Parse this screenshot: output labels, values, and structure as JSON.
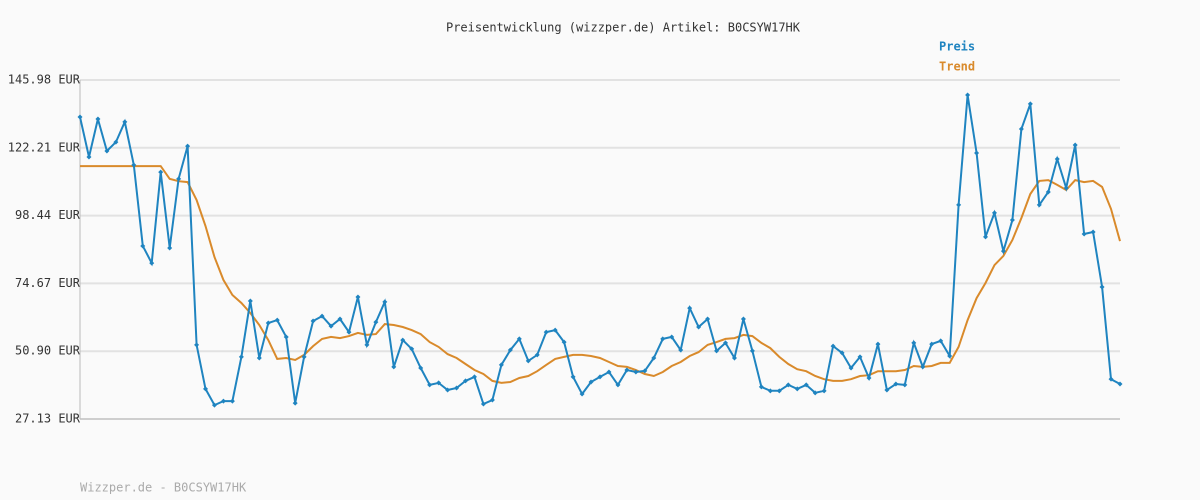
{
  "chart_data": {
    "type": "line",
    "title": "Preisentwicklung (wizzper.de) Artikel: B0CSYW17HK",
    "footer": "Wizzper.de - B0CSYW17HK",
    "ylim": [
      27.13,
      145.98
    ],
    "yticks": [
      {
        "value": 27.13,
        "label": "27.13 EUR"
      },
      {
        "value": 50.9,
        "label": "50.90 EUR"
      },
      {
        "value": 74.67,
        "label": "74.67 EUR"
      },
      {
        "value": 98.44,
        "label": "98.44 EUR"
      },
      {
        "value": 122.21,
        "label": "122.21 EUR"
      },
      {
        "value": 145.98,
        "label": "145.98 EUR"
      }
    ],
    "grid": true,
    "legend": "top-right",
    "series": [
      {
        "name": "Preis",
        "color": "#1f84c0",
        "markers": true,
        "values": [
          133.0,
          119.0,
          132.3,
          121.1,
          124.2,
          131.3,
          116.2,
          87.8,
          81.8,
          113.7,
          87.1,
          111.3,
          122.8,
          53.1,
          37.7,
          32.0,
          33.4,
          33.4,
          48.9,
          68.5,
          48.5,
          60.8,
          61.8,
          55.9,
          32.7,
          48.9,
          61.5,
          63.2,
          59.7,
          62.2,
          57.6,
          69.9,
          53.1,
          61.1,
          68.2,
          45.4,
          54.8,
          51.7,
          45.0,
          39.1,
          39.8,
          37.3,
          38.0,
          40.5,
          41.9,
          32.4,
          33.8,
          46.1,
          51.3,
          55.2,
          47.5,
          49.6,
          57.6,
          58.3,
          54.1,
          41.9,
          35.9,
          40.1,
          41.9,
          43.6,
          39.1,
          44.3,
          43.6,
          44.0,
          48.5,
          55.2,
          55.9,
          51.3,
          66.0,
          59.4,
          62.2,
          51.0,
          53.8,
          48.5,
          62.2,
          51.0,
          38.4,
          37.0,
          37.0,
          39.1,
          37.7,
          39.1,
          36.3,
          37.0,
          52.7,
          50.3,
          45.0,
          48.9,
          41.5,
          53.4,
          37.3,
          39.4,
          39.1,
          53.8,
          45.4,
          53.4,
          54.5,
          49.2,
          102.2,
          140.7,
          120.4,
          91.0,
          99.4,
          86.0,
          96.9,
          128.8,
          137.6,
          102.2,
          106.7,
          118.3,
          108.1,
          123.2,
          92.0,
          92.7,
          73.4,
          41.1,
          39.4
        ]
      },
      {
        "name": "Trend",
        "color": "#d98a2b",
        "markers": false,
        "values": [
          115.8,
          115.8,
          115.8,
          115.8,
          115.8,
          115.8,
          115.8,
          115.8,
          115.8,
          115.8,
          111.3,
          110.5,
          110.2,
          103.9,
          94.8,
          83.9,
          75.9,
          70.6,
          67.8,
          64.3,
          60.1,
          54.8,
          48.2,
          48.5,
          47.8,
          49.6,
          52.7,
          55.2,
          55.9,
          55.5,
          56.2,
          57.3,
          56.6,
          56.9,
          60.4,
          60.1,
          59.4,
          58.3,
          56.9,
          54.1,
          52.4,
          49.9,
          48.5,
          46.4,
          44.3,
          42.9,
          40.5,
          39.8,
          40.1,
          41.5,
          42.2,
          43.9,
          46.1,
          48.2,
          48.9,
          49.6,
          49.6,
          49.2,
          48.5,
          47.1,
          45.7,
          45.4,
          44.3,
          42.9,
          42.2,
          43.6,
          45.7,
          47.1,
          49.2,
          50.6,
          53.1,
          54.1,
          55.2,
          55.5,
          56.6,
          56.2,
          53.8,
          52.0,
          48.9,
          46.4,
          44.6,
          43.9,
          42.2,
          41.1,
          40.5,
          40.5,
          41.1,
          42.2,
          42.5,
          43.9,
          43.9,
          43.9,
          44.3,
          45.7,
          45.4,
          45.7,
          46.8,
          46.8,
          52.4,
          61.8,
          69.5,
          74.8,
          81.1,
          84.3,
          89.9,
          97.6,
          106.0,
          110.6,
          110.9,
          109.2,
          107.4,
          110.9,
          110.2,
          110.6,
          108.5,
          100.8,
          89.5
        ]
      }
    ]
  }
}
